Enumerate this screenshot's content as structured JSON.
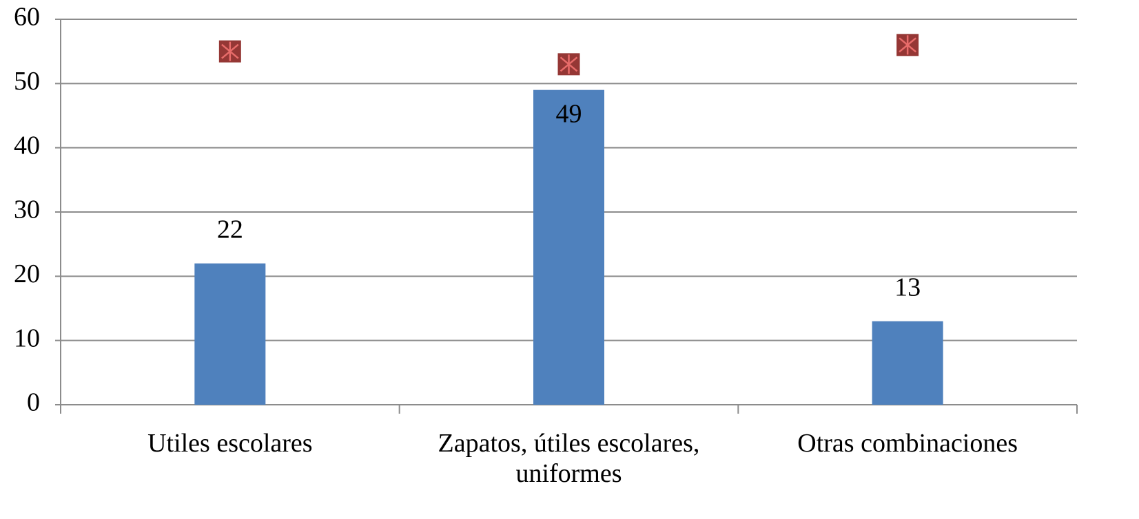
{
  "chart_data": {
    "type": "bar",
    "categories": [
      "Utiles escolares",
      "Zapatos, útiles escolares, uniformes",
      "Otras combinaciones"
    ],
    "series": [
      {
        "type": "bar",
        "color": "#4f81bd",
        "values": [
          22,
          49,
          13
        ]
      },
      {
        "type": "marker",
        "color": "#953735",
        "values": [
          55,
          53,
          56
        ]
      }
    ],
    "ylim": [
      0,
      60
    ],
    "yticks": [
      0,
      10,
      20,
      30,
      40,
      50,
      60
    ],
    "grid": true
  }
}
